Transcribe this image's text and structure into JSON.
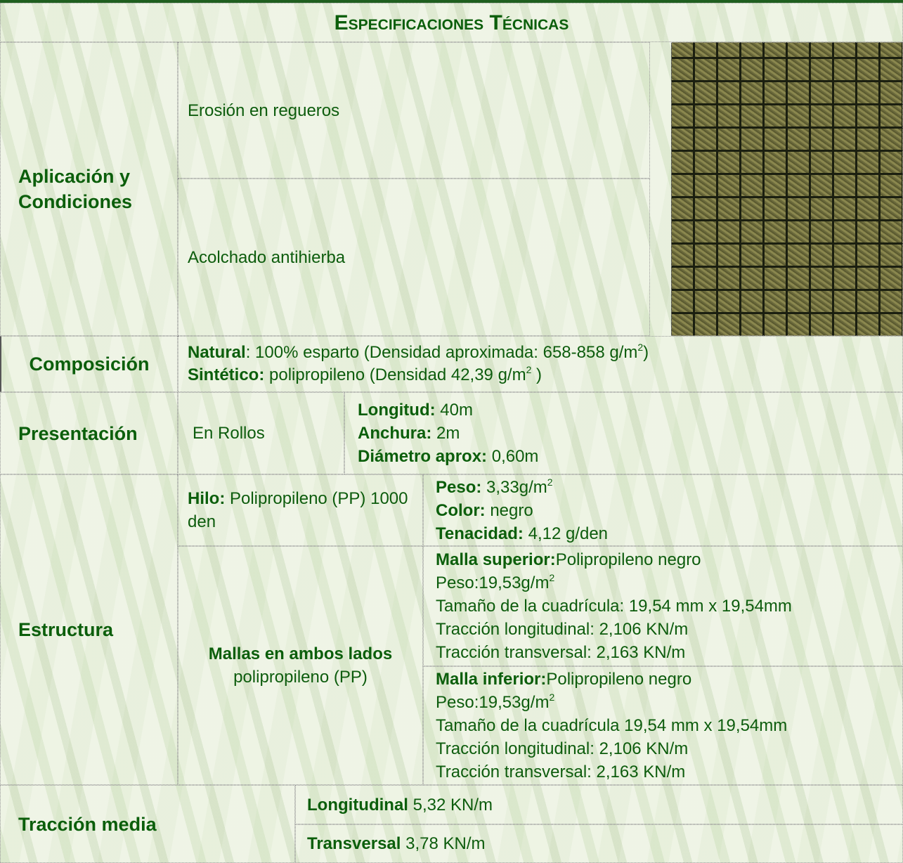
{
  "title": "Especificaciones Técnicas",
  "aplicacion": {
    "label": "Aplicación y Condiciones",
    "items": [
      "Erosión en regueros",
      "Acolchado antihierba"
    ]
  },
  "composicion": {
    "label": "Composición",
    "lines": [
      {
        "b": "Natural",
        "t": ": 100% esparto (Densidad aproximada: 658-858  g/m",
        "sup": "2",
        "a": ")"
      },
      {
        "b": "Sintético:",
        "t": " polipropileno (Densidad 42,39  g/m",
        "sup": "2",
        "a": " )"
      }
    ]
  },
  "presentacion": {
    "label": "Presentación",
    "form": "En Rollos",
    "specs": [
      {
        "b": "Longitud:",
        "t": " 40m"
      },
      {
        "b": "Anchura:",
        "t": " 2m"
      },
      {
        "b": "Diámetro aprox:",
        "t": " 0,60m"
      }
    ]
  },
  "estructura": {
    "label": "Estructura",
    "hilo": [
      {
        "b": "Hilo:",
        "t": " Polipropileno (PP) 1000 den"
      }
    ],
    "hilo_specs": [
      {
        "b": "Peso:",
        "t": " 3,33g/m",
        "sup": "2"
      },
      {
        "b": "Color:",
        "t": " negro"
      },
      {
        "b": "Tenacidad:",
        "t": " 4,12 g/den"
      }
    ],
    "mallas": [
      {
        "b": "Mallas en ambos lados"
      },
      {
        "t": "polipropileno (PP)"
      }
    ],
    "malla_superior": [
      {
        "b": "Malla superior:",
        "t": "Polipropileno negro"
      },
      {
        "t": "Peso:19,53g/m",
        "sup": "2"
      },
      {
        "t": "Tamaño de la cuadrícula: 19,54 mm x 19,54mm"
      },
      {
        "t": "Tracción longitudinal: 2,106 KN/m"
      },
      {
        "t": "Tracción transversal: 2,163 KN/m"
      }
    ],
    "malla_inferior": [
      {
        "b": "Malla inferior:",
        "t": "Polipropileno negro"
      },
      {
        "t": "Peso:19,53g/m",
        "sup": "2"
      },
      {
        "t": "Tamaño de la cuadrícula 19,54 mm x 19,54mm"
      },
      {
        "t": "Tracción longitudinal: 2,106 KN/m"
      },
      {
        "t": "Tracción transversal: 2,163 KN/m"
      }
    ]
  },
  "traccion": {
    "label": "Tracción media",
    "items": [
      {
        "b": "Longitudinal",
        "t": " 5,32  KN/m"
      },
      {
        "b": "Transversal",
        "t": " 3,78 KN/m"
      }
    ]
  }
}
